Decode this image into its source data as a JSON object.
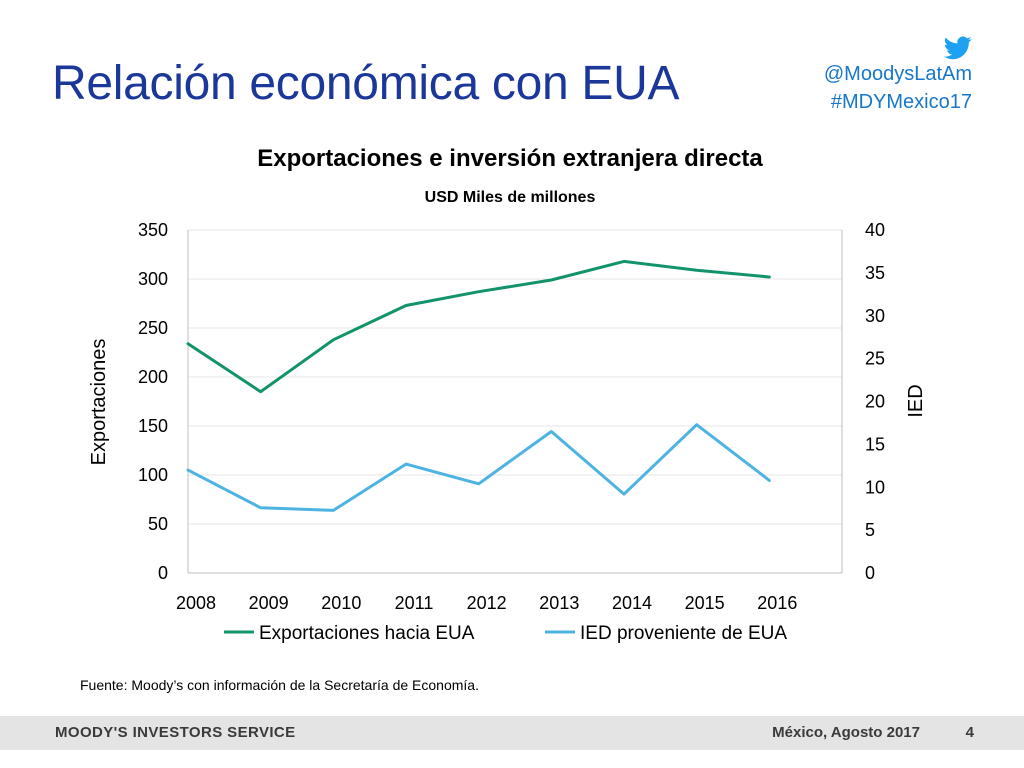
{
  "slide": {
    "title": "Relación económica con EUA",
    "social": {
      "handle": "@MoodysLatAm",
      "hashtag": "#MDYMexico17",
      "icon": "twitter-icon"
    },
    "source": "Fuente: Moody’s con información de la Secretaría de Economía.",
    "footer": {
      "brand": "MOODY'S INVESTORS SERVICE",
      "date": "México, Agosto 2017",
      "page": "4"
    }
  },
  "chart_data": {
    "type": "line",
    "title": "Exportaciones e inversión extranjera directa",
    "subtitle": "USD Miles de millones",
    "x": [
      "2008",
      "2009",
      "2010",
      "2011",
      "2012",
      "2013",
      "2014",
      "2015",
      "2016"
    ],
    "ylabel": "Exportaciones",
    "ylim": [
      0,
      350
    ],
    "yticks": [
      0,
      50,
      100,
      150,
      200,
      250,
      300,
      350
    ],
    "y2label": "IED",
    "y2lim": [
      0,
      40
    ],
    "y2ticks": [
      0,
      5,
      10,
      15,
      20,
      25,
      30,
      35,
      40
    ],
    "grid": true,
    "legend_position": "bottom",
    "series": [
      {
        "name": "Exportaciones hacia EUA",
        "axis": "left",
        "color": "#13936b",
        "values": [
          234,
          185,
          238,
          273,
          287,
          299,
          318,
          309,
          302
        ]
      },
      {
        "name": "IED proveniente de EUA",
        "axis": "right",
        "color": "#4db3e3",
        "values": [
          12.0,
          7.6,
          7.3,
          12.7,
          10.4,
          16.5,
          9.2,
          17.3,
          10.8
        ]
      }
    ]
  }
}
